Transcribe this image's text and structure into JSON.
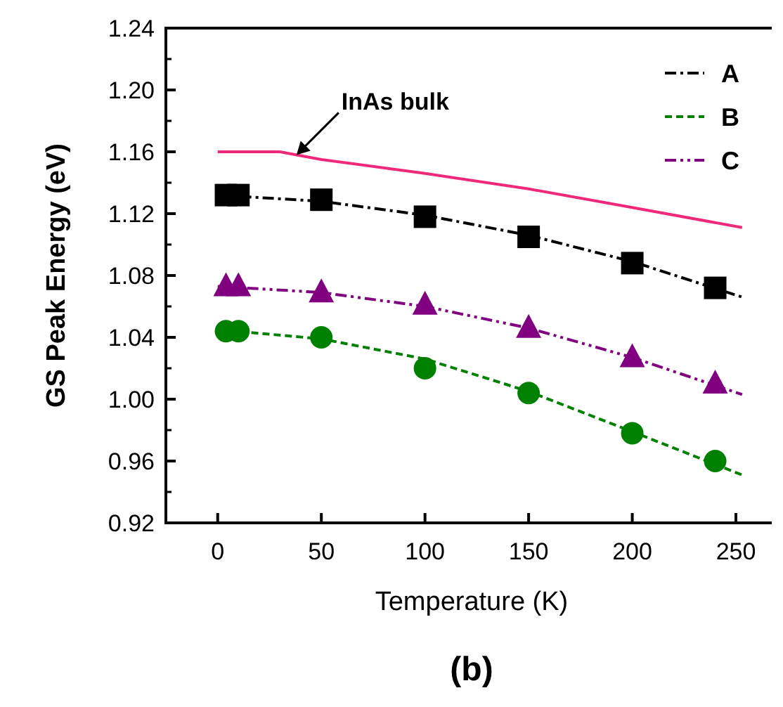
{
  "chart_data": {
    "type": "line",
    "title": "(b)",
    "xlabel": "Temperature (K)",
    "ylabel": "GS Peak Energy (eV)",
    "xlim": [
      -25,
      270
    ],
    "ylim": [
      0.92,
      1.24
    ],
    "xticks": [
      0,
      50,
      100,
      150,
      200,
      250
    ],
    "yticks": [
      0.92,
      0.96,
      {
        "value": 1,
        "label": "1.00"
      },
      1.04,
      1.08,
      1.12,
      1.16,
      {
        "value": 1.2,
        "label": "1.20"
      },
      1.24
    ],
    "grid": false,
    "legend": "top right",
    "marker": "none",
    "annotations": [
      {
        "text": "InAs bulk",
        "x": 38,
        "y": 1.158
      }
    ],
    "series": [
      {
        "name": "A",
        "color": "#000000",
        "line_style": "dashdot",
        "x": [
          0,
          50,
          100,
          150,
          200,
          253
        ],
        "values": [
          1.132,
          1.128,
          1.119,
          1.106,
          1.089,
          1.066
        ]
      },
      {
        "name": "B",
        "color": "#008000",
        "line_style": "dashed",
        "x": [
          0,
          50,
          100,
          150,
          200,
          253
        ],
        "values": [
          1.045,
          1.039,
          1.026,
          1.005,
          0.979,
          0.951
        ]
      },
      {
        "name": "C",
        "color": "#800080",
        "line_style": "dashdotdot",
        "x": [
          0,
          50,
          100,
          150,
          200,
          253
        ],
        "values": [
          1.073,
          1.069,
          1.06,
          1.046,
          1.027,
          1.003
        ]
      },
      {
        "color": "#f0287a",
        "line_style": "solid",
        "x": [
          0,
          30,
          50,
          100,
          150,
          200,
          253
        ],
        "values": [
          1.16,
          1.16,
          1.155,
          1.146,
          1.136,
          1.124,
          1.111
        ]
      },
      {
        "type": "scatter",
        "marker": "square",
        "color": "#000000",
        "x": [
          4,
          10,
          50,
          100,
          150,
          200,
          240
        ],
        "values": [
          1.132,
          1.132,
          1.129,
          1.118,
          1.105,
          1.088,
          1.072
        ]
      },
      {
        "type": "scatter",
        "marker": "circle",
        "color": "#008000",
        "x": [
          4,
          10,
          50,
          100,
          150,
          200,
          240
        ],
        "values": [
          1.044,
          1.044,
          1.04,
          1.02,
          1.004,
          0.978,
          0.96
        ]
      },
      {
        "type": "scatter",
        "marker": "triangle",
        "color": "#800080",
        "x": [
          4,
          10,
          50,
          100,
          150,
          200,
          240
        ],
        "values": [
          1.073,
          1.073,
          1.069,
          1.061,
          1.046,
          1.027,
          1.01
        ]
      }
    ]
  }
}
